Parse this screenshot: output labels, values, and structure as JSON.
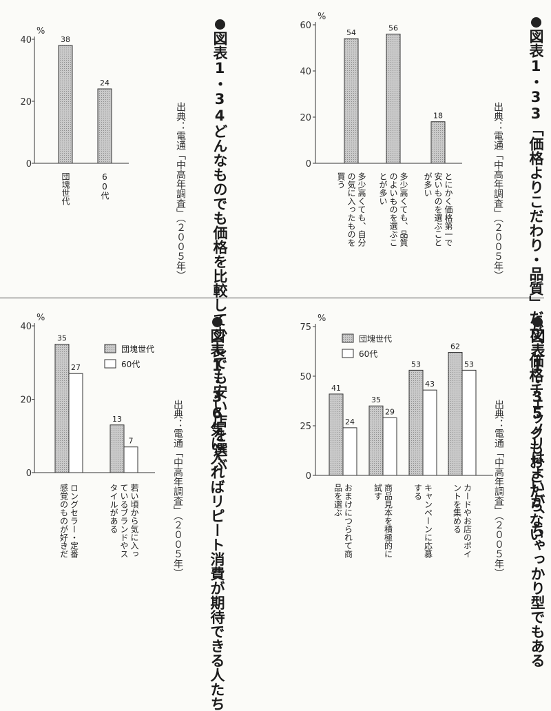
{
  "colors": {
    "series_dankai": "#c4c4c4",
    "series_60s": "#ffffff",
    "stroke": "#333333"
  },
  "figures": [
    {
      "id": "fig34",
      "number": "図表1・34",
      "title": "どんなものでも価格を比較して少しでも安い店を選ぶ",
      "source": "出典：電通「中高年調査」（２００５年）"
    },
    {
      "id": "fig33",
      "number": "図表1・33",
      "title": "「価格よりこだわり・品質」だが、価格チェックもおこたらない",
      "source": "出典：電通「中高年調査」（２００５年）"
    },
    {
      "id": "fig36",
      "number": "図表1・36",
      "title": "気に入ればリピート消費が期待できる人たち",
      "source": "出典：電通「中高年調査」（２００５年）"
    },
    {
      "id": "fig35",
      "number": "図表1・35",
      "title": "ノリはよいが、ちゃっかり型でもある",
      "source": "出典：電通「中高年調査」（２００５年）"
    }
  ],
  "chart_data": [
    {
      "id": "fig34",
      "type": "bar",
      "unit": "%",
      "ylim": [
        0,
        40
      ],
      "yticks": [
        0,
        20,
        40
      ],
      "categories": [
        "団塊世代",
        "60代"
      ],
      "series": [
        {
          "values": [
            38,
            24
          ]
        }
      ]
    },
    {
      "id": "fig33",
      "type": "bar",
      "unit": "%",
      "ylim": [
        0,
        60
      ],
      "yticks": [
        0,
        20,
        40,
        60
      ],
      "categories": [
        "多少高くても、自分の気に入ったものを買う",
        "多少高くても、品質のよいものを選ぶことが多い",
        "とにかく価格第一で安いものを選ぶことが多い"
      ],
      "series": [
        {
          "values": [
            54,
            56,
            18
          ]
        }
      ]
    },
    {
      "id": "fig36",
      "type": "bar",
      "unit": "%",
      "ylim": [
        0,
        40
      ],
      "yticks": [
        0,
        20,
        40
      ],
      "categories": [
        "ロングセラー・定番感覚のものが好きだ",
        "若い頃から気に入っているブランドやスタイルがある"
      ],
      "series": [
        {
          "name": "団塊世代",
          "values": [
            35,
            13
          ]
        },
        {
          "name": "60代",
          "values": [
            27,
            7
          ]
        }
      ]
    },
    {
      "id": "fig35",
      "type": "bar",
      "unit": "%",
      "ylim": [
        0,
        75
      ],
      "yticks": [
        0,
        25,
        50,
        75
      ],
      "categories": [
        "おまけにつられて商品を選ぶ",
        "商品見本を積極的に試す",
        "キャンペーンに応募する",
        "カードやお店のポイントを集める"
      ],
      "series": [
        {
          "name": "団塊世代",
          "values": [
            41,
            35,
            53,
            62
          ]
        },
        {
          "name": "60代",
          "values": [
            24,
            29,
            43,
            53
          ]
        }
      ]
    }
  ]
}
